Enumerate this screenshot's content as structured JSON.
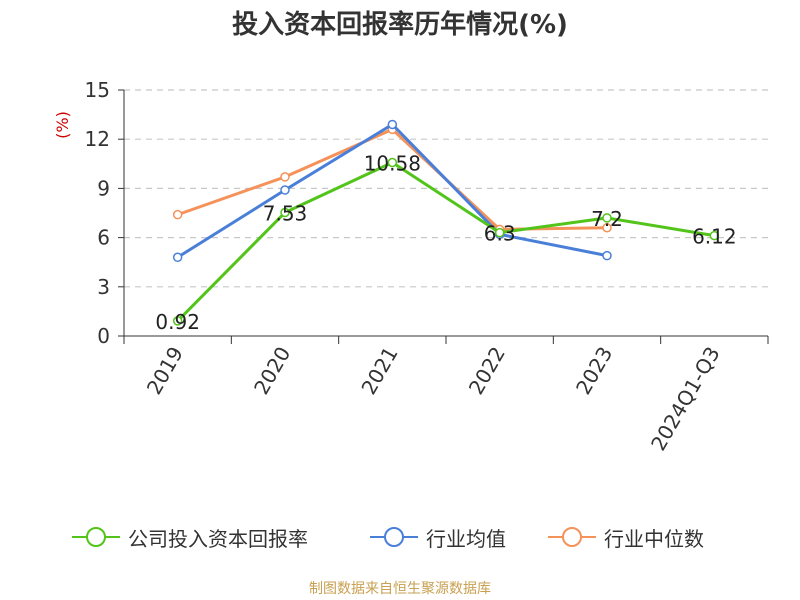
{
  "title": "投入资本回报率历年情况(%)",
  "source_note": "制图数据来自恒生聚源数据库",
  "chart_data": {
    "type": "line",
    "categories": [
      "2019",
      "2020",
      "2021",
      "2022",
      "2023",
      "2024Q1-Q3"
    ],
    "ylabel": "(%)",
    "ylim": [
      0,
      15
    ],
    "yticks": [
      0,
      3,
      6,
      9,
      12,
      15
    ],
    "grid": true,
    "legend_position": "bottom",
    "series": [
      {
        "name": "公司投入资本回报率",
        "color": "#52c41a",
        "values": [
          0.92,
          7.53,
          10.58,
          6.3,
          7.2,
          6.12
        ],
        "labels": [
          "0.92",
          "7.53",
          "10.58",
          "6.3",
          "7.2",
          "6.12"
        ]
      },
      {
        "name": "行业均值",
        "color": "#4a7fd9",
        "values": [
          4.8,
          8.9,
          12.9,
          6.2,
          4.9,
          null
        ]
      },
      {
        "name": "行业中位数",
        "color": "#f5925a",
        "values": [
          7.4,
          9.7,
          12.6,
          6.5,
          6.6,
          null
        ]
      }
    ]
  }
}
